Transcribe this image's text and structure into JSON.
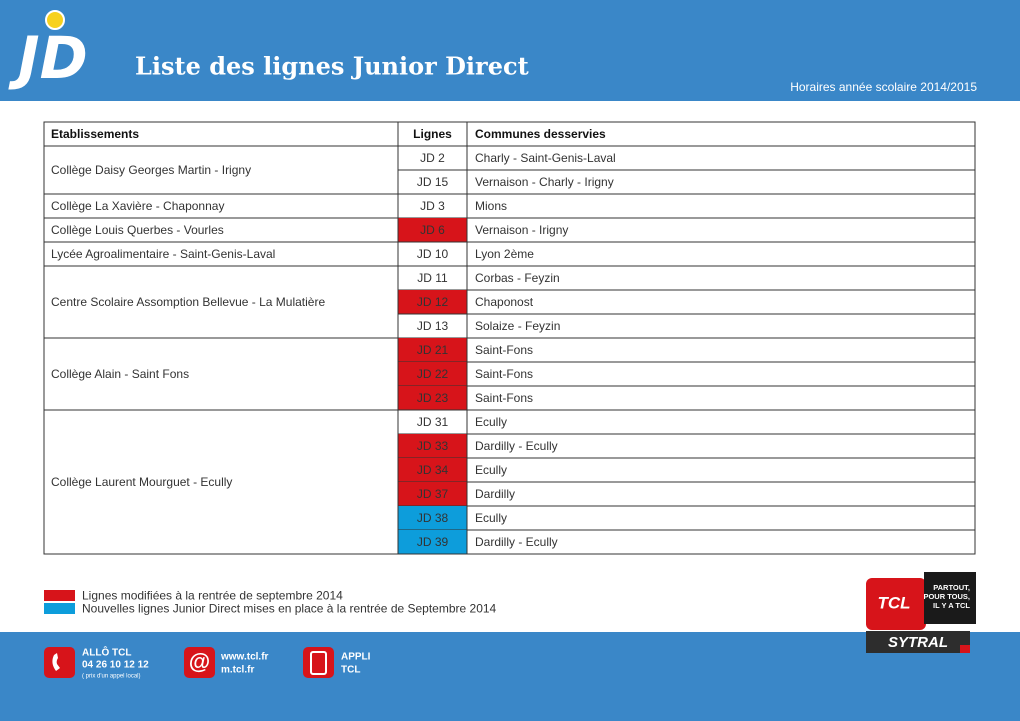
{
  "header": {
    "logo": "JD",
    "title": "Liste des lignes Junior Direct",
    "subtitle": "Horaires année scolaire 2014/2015"
  },
  "table": {
    "columns": [
      "Etablissements",
      "Lignes",
      "Communes desservies"
    ],
    "groups": [
      {
        "school": "Collège Daisy Georges Martin - Irigny",
        "lines": [
          {
            "line": "JD 2",
            "communes": "Charly - Saint-Genis-Laval"
          },
          {
            "line": "JD 15",
            "communes": "Vernaison - Charly - Irigny"
          }
        ]
      },
      {
        "school": "Collège La Xavière - Chaponnay",
        "lines": [
          {
            "line": "JD 3",
            "communes": "Mions"
          }
        ]
      },
      {
        "school": "Collège Louis Querbes - Vourles",
        "lines": [
          {
            "line": "JD 6",
            "communes": "Vernaison - Irigny",
            "status": "modified"
          }
        ]
      },
      {
        "school": "Lycée Agroalimentaire - Saint-Genis-Laval",
        "lines": [
          {
            "line": "JD 10",
            "communes": "Lyon 2ème"
          }
        ]
      },
      {
        "school": "Centre Scolaire Assomption Bellevue - La Mulatière",
        "lines": [
          {
            "line": "JD 11",
            "communes": "Corbas - Feyzin"
          },
          {
            "line": "JD 12",
            "communes": "Chaponost",
            "status": "modified"
          },
          {
            "line": "JD 13",
            "communes": "Solaize - Feyzin"
          }
        ]
      },
      {
        "school": "Collège Alain - Saint Fons",
        "lines": [
          {
            "line": "JD 21",
            "communes": "Saint-Fons",
            "status": "modified"
          },
          {
            "line": "JD 22",
            "communes": "Saint-Fons",
            "status": "modified"
          },
          {
            "line": "JD 23",
            "communes": "Saint-Fons",
            "status": "modified"
          }
        ]
      },
      {
        "school": "Collège Laurent Mourguet - Ecully",
        "lines": [
          {
            "line": "JD 31",
            "communes": "Ecully"
          },
          {
            "line": "JD 33",
            "communes": "Dardilly - Ecully",
            "status": "modified"
          },
          {
            "line": "JD 34",
            "communes": "Ecully",
            "status": "modified"
          },
          {
            "line": "JD 37",
            "communes": "Dardilly",
            "status": "modified"
          },
          {
            "line": "JD 38",
            "communes": "Ecully",
            "status": "new"
          },
          {
            "line": "JD 39",
            "communes": "Dardilly - Ecully",
            "status": "new"
          }
        ]
      }
    ]
  },
  "legend": [
    {
      "status": "modified",
      "color": "#d7141a",
      "label": "Lignes modifiées à la rentrée de septembre 2014"
    },
    {
      "status": "new",
      "color": "#0d9ddb",
      "label": "Nouvelles lignes Junior Direct mises en place à la rentrée de Septembre 2014"
    }
  ],
  "footer": {
    "phone": {
      "title": "ALLÔ TCL",
      "number": "04 26 10 12 12",
      "note": "( prix d'un appel local)"
    },
    "web": {
      "site": "www.tcl.fr",
      "mobile": "m.tcl.fr"
    },
    "app": {
      "title": "APPLI",
      "name": "TCL"
    },
    "brand": {
      "logo": "TCL",
      "slogan": [
        "PARTOUT,",
        "POUR TOUS,",
        "IL Y A TCL"
      ],
      "authority": "SYTRAL"
    }
  }
}
